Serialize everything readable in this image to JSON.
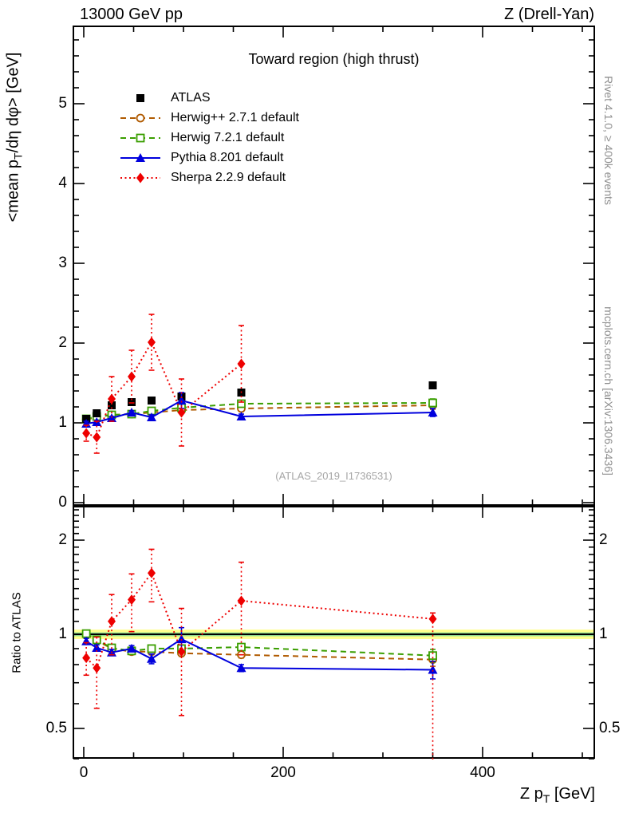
{
  "header": {
    "left": "13000 GeV pp",
    "right": "Z (Drell-Yan)"
  },
  "credits": {
    "top_right": "Rivet 4.1.0, ≥ 400k events",
    "bottom_right": "mcplots.cern.ch [arXiv:1306.3436]"
  },
  "watermark": "(ATLAS_2019_I1736531)",
  "axes": {
    "ylabel": {
      "pre": "<mean p",
      "sub": "T",
      "post": "/dη dφ> [GeV]"
    },
    "xlabel": {
      "pre": "Z p",
      "sub": "T",
      "post": " [GeV]"
    },
    "ratio_label": "Ratio to ATLAS",
    "x_ticks": [
      0,
      200,
      400
    ],
    "main_y_ticks": [
      0,
      1,
      2,
      3,
      4,
      5
    ],
    "ratio_y_ticks": [
      "2",
      "1",
      "0.5"
    ]
  },
  "chart_data": {
    "type": "line",
    "title": "Toward region (high thrust)",
    "xlabel": "Z pT [GeV]",
    "ylabel": "<mean pT/dη dφ> [GeV]",
    "ratio_ylabel": "Ratio to ATLAS",
    "xlim": [
      -10,
      512
    ],
    "ylim_main": [
      0,
      5.97
    ],
    "ylim_ratio": [
      0.4,
      2.56
    ],
    "ratio_scale": "log",
    "grid": false,
    "x": [
      2.5,
      13,
      28,
      48,
      68,
      98,
      158,
      350
    ],
    "ratio_band": {
      "center": 1.0,
      "yellow": [
        0.966,
        1.035
      ],
      "green": [
        0.986,
        1.014
      ],
      "yellow_color": "#ffff8c",
      "green_color": "#8fd98f"
    },
    "series": [
      {
        "name": "atlas",
        "label": "ATLAS",
        "color": "#000000",
        "marker": "square-filled",
        "line": "none",
        "values": [
          1.05,
          1.12,
          1.22,
          1.26,
          1.28,
          1.33,
          1.38,
          1.47
        ],
        "err": [
          0.03,
          0.03,
          0.03,
          0.03,
          0.03,
          0.03,
          0.03,
          0.03
        ],
        "ratio": null,
        "ratio_err_lo": null,
        "ratio_err_hi": null
      },
      {
        "name": "herwigpp",
        "label": "Herwig++ 2.7.1 default",
        "color": "#b05a00",
        "marker": "circle-open",
        "line": "dashed",
        "values": [
          1.04,
          1.07,
          1.1,
          1.11,
          1.13,
          1.16,
          1.18,
          1.22
        ],
        "err": [
          0.02,
          0.02,
          0.02,
          0.02,
          0.02,
          0.02,
          0.02,
          0.05
        ],
        "ratio": [
          1.0,
          0.955,
          0.9,
          0.88,
          0.88,
          0.87,
          0.86,
          0.83
        ],
        "ratio_err_lo": [
          0.02,
          0.02,
          0.02,
          0.02,
          0.02,
          0.02,
          0.02,
          0.04
        ],
        "ratio_err_hi": [
          0.02,
          0.02,
          0.02,
          0.02,
          0.02,
          0.02,
          0.02,
          0.04
        ]
      },
      {
        "name": "herwig7",
        "label": "Herwig 7.2.1 default",
        "color": "#3a9e00",
        "marker": "square-open",
        "line": "dashed",
        "values": [
          1.05,
          1.08,
          1.1,
          1.11,
          1.15,
          1.19,
          1.24,
          1.25
        ],
        "err": [
          0.02,
          0.02,
          0.02,
          0.02,
          0.02,
          0.02,
          0.02,
          0.05
        ],
        "ratio": [
          1.005,
          0.96,
          0.905,
          0.885,
          0.9,
          0.9,
          0.91,
          0.855
        ],
        "ratio_err_lo": [
          0.02,
          0.02,
          0.02,
          0.02,
          0.02,
          0.02,
          0.02,
          0.04
        ],
        "ratio_err_hi": [
          0.02,
          0.02,
          0.02,
          0.02,
          0.02,
          0.02,
          0.02,
          0.04
        ]
      },
      {
        "name": "pythia",
        "label": "Pythia 8.201 default",
        "color": "#0000dd",
        "marker": "triangle-filled",
        "line": "solid",
        "values": [
          0.99,
          1.01,
          1.06,
          1.13,
          1.07,
          1.28,
          1.08,
          1.13
        ],
        "err": [
          0.03,
          0.02,
          0.02,
          0.02,
          0.03,
          0.1,
          0.03,
          0.05
        ],
        "ratio": [
          0.95,
          0.905,
          0.875,
          0.9,
          0.835,
          0.965,
          0.78,
          0.77
        ],
        "ratio_err_lo": [
          0.02,
          0.02,
          0.02,
          0.02,
          0.03,
          0.085,
          0.02,
          0.05
        ],
        "ratio_err_hi": [
          0.02,
          0.02,
          0.02,
          0.02,
          0.03,
          0.085,
          0.02,
          0.05
        ]
      },
      {
        "name": "sherpa",
        "label": "Sherpa 2.2.9 default",
        "color": "#ee0000",
        "marker": "diamond-filled",
        "line": "dotted",
        "values": [
          0.87,
          0.82,
          1.3,
          1.58,
          2.01,
          1.13,
          1.74,
          null
        ],
        "err": [
          0.1,
          0.2,
          0.28,
          0.33,
          0.35,
          0.42,
          0.48,
          0
        ],
        "ratio": [
          0.84,
          0.78,
          1.1,
          1.29,
          1.57,
          0.88,
          1.28,
          1.12
        ],
        "ratio_err_lo": [
          0.1,
          0.2,
          0.24,
          0.27,
          0.3,
          0.33,
          0.42,
          0.74
        ],
        "ratio_err_hi": [
          0.1,
          0.2,
          0.24,
          0.27,
          0.3,
          0.33,
          0.42,
          0.05
        ]
      }
    ]
  }
}
